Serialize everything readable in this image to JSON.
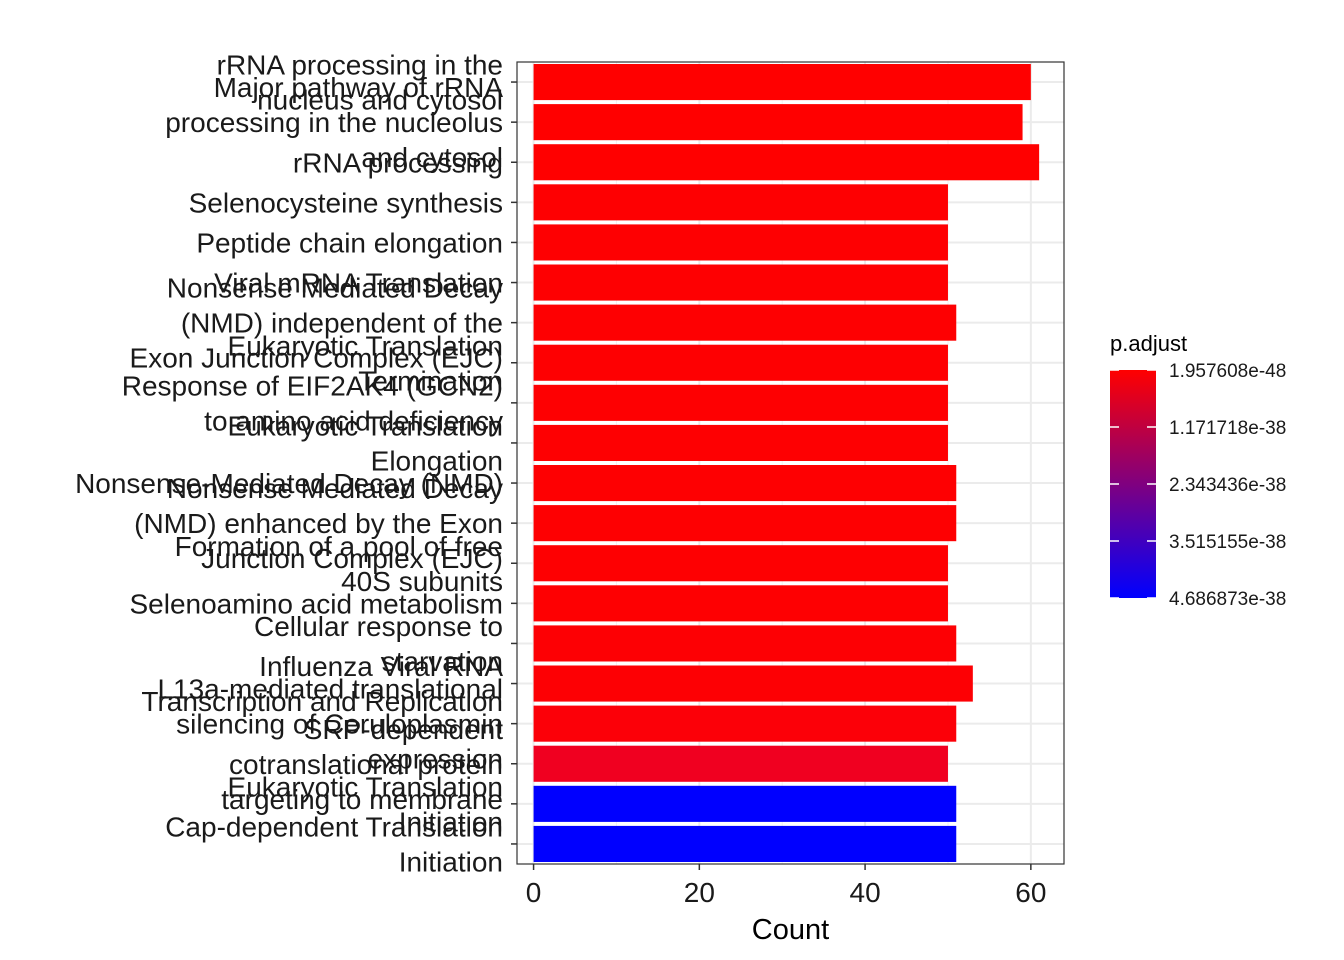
{
  "chart_data": {
    "type": "bar",
    "orientation": "horizontal",
    "xlabel": "Count",
    "ylabel": "",
    "title": "",
    "xlim": [
      -2,
      64
    ],
    "xticks": [
      0,
      20,
      40,
      60
    ],
    "xtick_labels": [
      "0",
      "20",
      "40",
      "60"
    ],
    "grid": true,
    "categories": [
      [
        "rRNA processing in the",
        "nucleus and cytosol"
      ],
      [
        "Major pathway of rRNA",
        "processing in the nucleolus",
        "and cytosol"
      ],
      [
        "rRNA processing"
      ],
      [
        "Selenocysteine synthesis"
      ],
      [
        "Peptide chain elongation"
      ],
      [
        "Viral mRNA Translation"
      ],
      [
        "Nonsense Mediated Decay",
        "(NMD) independent of the",
        "Exon Junction Complex (EJC)"
      ],
      [
        "Eukaryotic Translation",
        "Termination"
      ],
      [
        "Response of EIF2AK4 (GCN2)",
        "to amino acid deficiency"
      ],
      [
        "Eukaryotic Translation",
        "Elongation"
      ],
      [
        "Nonsense-Mediated Decay (NMD)"
      ],
      [
        "Nonsense Mediated Decay",
        "(NMD) enhanced by the Exon",
        "Junction Complex (EJC)"
      ],
      [
        "Formation of a pool of free",
        "40S subunits"
      ],
      [
        "Selenoamino acid metabolism"
      ],
      [
        "Cellular response to",
        "starvation"
      ],
      [
        "Influenza Viral RNA",
        "Transcription and Replication"
      ],
      [
        "L13a-mediated translational",
        "silencing of Ceruloplasmin",
        "expression"
      ],
      [
        "SRP-dependent",
        "cotranslational protein",
        "targeting to membrane"
      ],
      [
        "Eukaryotic Translation",
        "Initiation"
      ],
      [
        "Cap-dependent Translation",
        "Initiation"
      ]
    ],
    "values": [
      60,
      59,
      61,
      50,
      50,
      50,
      51,
      50,
      50,
      50,
      51,
      51,
      50,
      50,
      51,
      53,
      51,
      50,
      51,
      51
    ],
    "colors": [
      "#FF0000",
      "#FF0000",
      "#FF0000",
      "#FE0002",
      "#FE0002",
      "#FE0002",
      "#FE0002",
      "#FE0002",
      "#FE0002",
      "#FE0002",
      "#FE0002",
      "#FE0002",
      "#FE0002",
      "#FE0002",
      "#FD0004",
      "#FD0004",
      "#FC0008",
      "#F00020",
      "#0000FF",
      "#0000FF"
    ],
    "legend": {
      "title": "p.adjust",
      "placement": "right",
      "labels": [
        "1.957608e-48",
        "1.171718e-38",
        "2.343436e-38",
        "3.515155e-38",
        "4.686873e-38"
      ],
      "color_low": "#FF0000",
      "color_high": "#0000FF"
    }
  }
}
